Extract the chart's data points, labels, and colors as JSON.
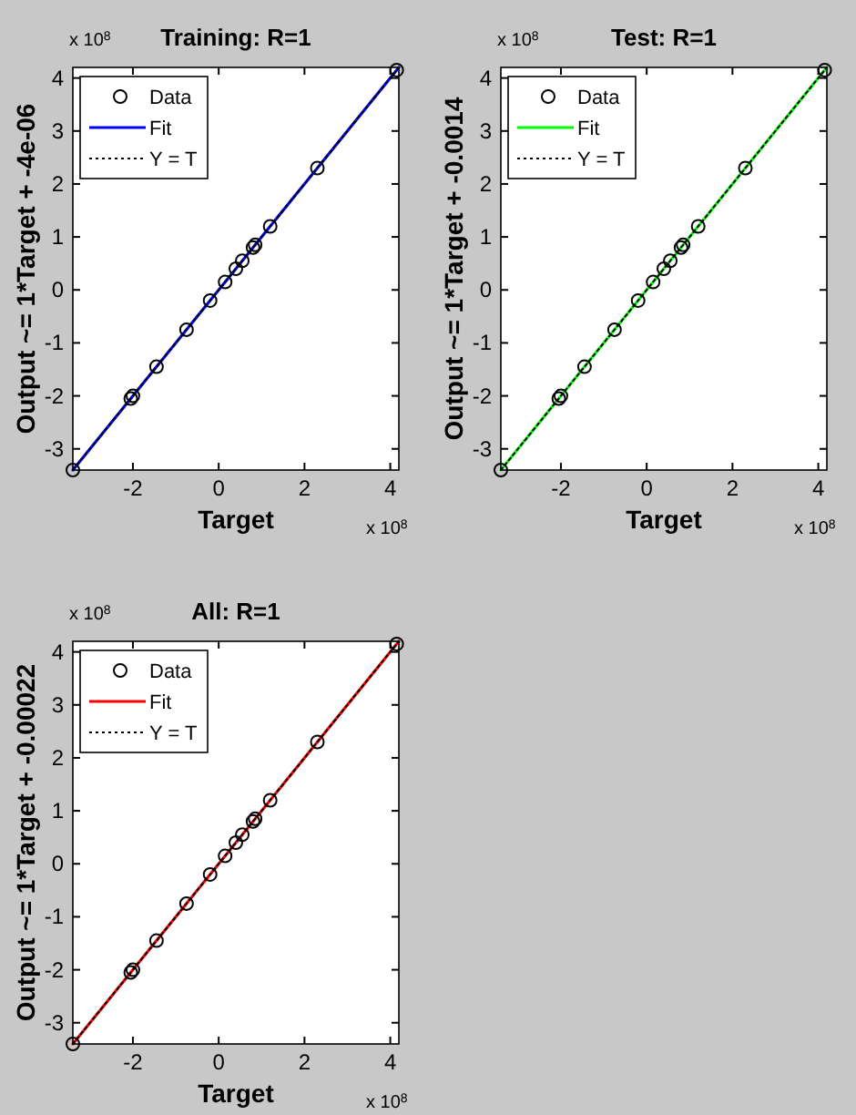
{
  "chart_data": [
    {
      "type": "scatter",
      "title": "Training: R=1",
      "xlabel": "Target",
      "ylabel": "Output ~= 1*Target + -4e-06",
      "annotations": [
        "x 10$^{8}$",
        "x 10$^{8}$"
      ],
      "xlim": [
        -3.4,
        4.2
      ],
      "ylim": [
        -3.4,
        4.2
      ],
      "xticks": [
        -2,
        0,
        2,
        4
      ],
      "yticks": [
        -3,
        -2,
        -1,
        0,
        1,
        2,
        3,
        4
      ],
      "legend": "top left",
      "grid": false,
      "series": [
        {
          "name": "Data",
          "marker": "circle",
          "color": "#000000",
          "x": [
            -3.4,
            -2.05,
            -2.0,
            -1.45,
            -0.75,
            -0.2,
            0.15,
            0.4,
            0.55,
            0.8,
            0.85,
            1.2,
            2.3,
            4.15
          ],
          "values": [
            -3.4,
            -2.05,
            -2.0,
            -1.45,
            -0.75,
            -0.2,
            0.15,
            0.4,
            0.55,
            0.8,
            0.85,
            1.2,
            2.3,
            4.15
          ]
        },
        {
          "name": "Fit",
          "type": "line",
          "line_style": "solid",
          "color": "#0000ff",
          "x": [
            -3.4,
            4.2
          ],
          "values": [
            -3.4,
            4.2
          ]
        },
        {
          "name": "Y = T",
          "type": "line",
          "line_style": "dotted",
          "color": "#000000",
          "x": [
            -3.4,
            4.2
          ],
          "values": [
            -3.4,
            4.2
          ]
        }
      ]
    },
    {
      "type": "scatter",
      "title": "Test: R=1",
      "xlabel": "Target",
      "ylabel": "Output ~= 1*Target + -0.0014",
      "annotations": [
        "x 10$^{8}$",
        "x 10$^{8}$"
      ],
      "xlim": [
        -3.4,
        4.2
      ],
      "ylim": [
        -3.4,
        4.2
      ],
      "xticks": [
        -2,
        0,
        2,
        4
      ],
      "yticks": [
        -3,
        -2,
        -1,
        0,
        1,
        2,
        3,
        4
      ],
      "legend": "top left",
      "grid": false,
      "series": [
        {
          "name": "Data",
          "marker": "circle",
          "color": "#000000",
          "x": [
            -3.4,
            -2.05,
            -2.0,
            -1.45,
            -0.75,
            -0.2,
            0.15,
            0.4,
            0.55,
            0.8,
            0.85,
            1.2,
            2.3,
            4.15
          ],
          "values": [
            -3.4,
            -2.05,
            -2.0,
            -1.45,
            -0.75,
            -0.2,
            0.15,
            0.4,
            0.55,
            0.8,
            0.85,
            1.2,
            2.3,
            4.15
          ]
        },
        {
          "name": "Fit",
          "type": "line",
          "line_style": "solid",
          "color": "#00ff00",
          "x": [
            -3.4,
            4.2
          ],
          "values": [
            -3.4,
            4.2
          ]
        },
        {
          "name": "Y = T",
          "type": "line",
          "line_style": "dotted",
          "color": "#000000",
          "x": [
            -3.4,
            4.2
          ],
          "values": [
            -3.4,
            4.2
          ]
        }
      ]
    },
    {
      "type": "scatter",
      "title": "All: R=1",
      "xlabel": "Target",
      "ylabel": "Output ~= 1*Target + -0.00022",
      "annotations": [
        "x 10$^{8}$",
        "x 10$^{8}$"
      ],
      "xlim": [
        -3.4,
        4.2
      ],
      "ylim": [
        -3.4,
        4.2
      ],
      "xticks": [
        -2,
        0,
        2,
        4
      ],
      "yticks": [
        -3,
        -2,
        -1,
        0,
        1,
        2,
        3,
        4
      ],
      "legend": "top left",
      "grid": false,
      "series": [
        {
          "name": "Data",
          "marker": "circle",
          "color": "#000000",
          "x": [
            -3.4,
            -2.05,
            -2.0,
            -1.45,
            -0.75,
            -0.2,
            0.15,
            0.4,
            0.55,
            0.8,
            0.85,
            1.2,
            2.3,
            4.15
          ],
          "values": [
            -3.4,
            -2.05,
            -2.0,
            -1.45,
            -0.75,
            -0.2,
            0.15,
            0.4,
            0.55,
            0.8,
            0.85,
            1.2,
            2.3,
            4.15
          ]
        },
        {
          "name": "Fit",
          "type": "line",
          "line_style": "solid",
          "color": "#ff0000",
          "x": [
            -3.4,
            4.2
          ],
          "values": [
            -3.4,
            4.2
          ]
        },
        {
          "name": "Y = T",
          "type": "line",
          "line_style": "dotted",
          "color": "#000000",
          "x": [
            -3.4,
            4.2
          ],
          "values": [
            -3.4,
            4.2
          ]
        }
      ]
    }
  ]
}
